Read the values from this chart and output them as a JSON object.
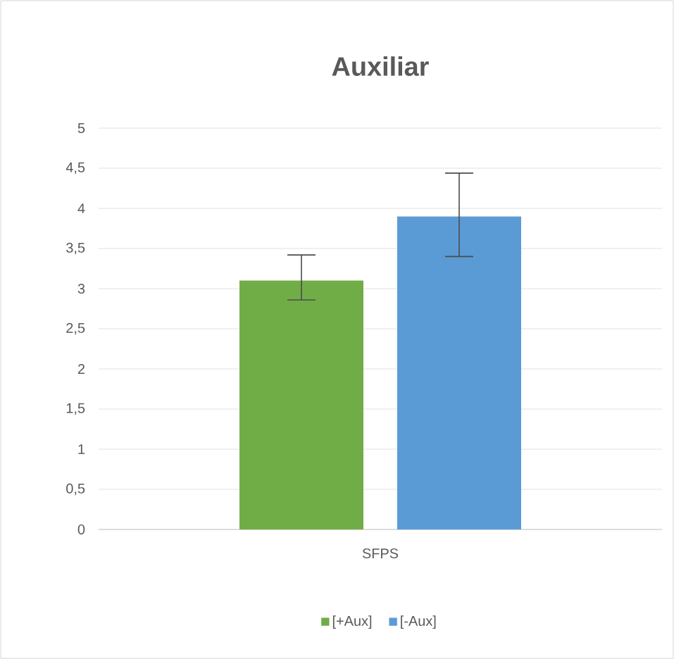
{
  "chart_data": {
    "type": "bar",
    "title": "Auxiliar",
    "categories": [
      "SFPS"
    ],
    "series": [
      {
        "name": "[+Aux]",
        "color": "#70ad47",
        "values": [
          3.1
        ],
        "errors": [
          [
            2.86,
            3.42
          ]
        ]
      },
      {
        "name": "[-Aux]",
        "color": "#5b9bd5",
        "values": [
          3.9
        ],
        "errors": [
          [
            3.4,
            4.44
          ]
        ]
      }
    ],
    "ylim": [
      0,
      5
    ],
    "yticks": [
      0,
      {
        "value": 0.5,
        "label": "0,5"
      },
      1,
      {
        "value": 1.5,
        "label": "1,5"
      },
      2,
      {
        "value": 2.5,
        "label": "2,5"
      },
      3,
      {
        "value": 3.5,
        "label": "3,5"
      },
      4,
      {
        "value": 4.5,
        "label": "4,5"
      },
      5
    ],
    "grid": "y",
    "legend": "bottom"
  }
}
